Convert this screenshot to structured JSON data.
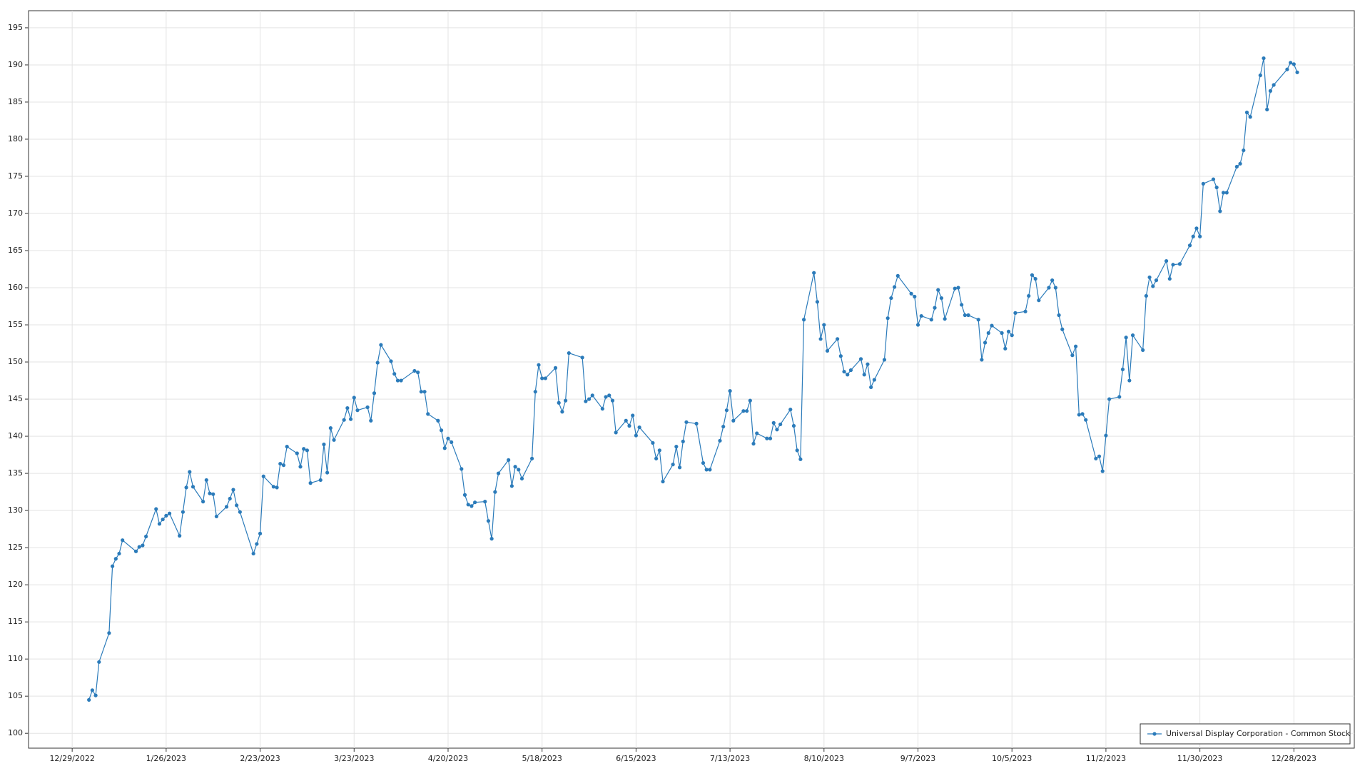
{
  "chart_data": {
    "type": "line",
    "x": [
      "1/3/2023",
      "1/4/2023",
      "1/5/2023",
      "1/6/2023",
      "1/9/2023",
      "1/10/2023",
      "1/11/2023",
      "1/12/2023",
      "1/13/2023",
      "1/17/2023",
      "1/18/2023",
      "1/19/2023",
      "1/20/2023",
      "1/23/2023",
      "1/24/2023",
      "1/25/2023",
      "1/26/2023",
      "1/27/2023",
      "1/30/2023",
      "1/31/2023",
      "2/1/2023",
      "2/2/2023",
      "2/3/2023",
      "2/6/2023",
      "2/7/2023",
      "2/8/2023",
      "2/9/2023",
      "2/10/2023",
      "2/13/2023",
      "2/14/2023",
      "2/15/2023",
      "2/16/2023",
      "2/17/2023",
      "2/21/2023",
      "2/22/2023",
      "2/23/2023",
      "2/24/2023",
      "2/27/2023",
      "2/28/2023",
      "3/1/2023",
      "3/2/2023",
      "3/3/2023",
      "3/6/2023",
      "3/7/2023",
      "3/8/2023",
      "3/9/2023",
      "3/10/2023",
      "3/13/2023",
      "3/14/2023",
      "3/15/2023",
      "3/16/2023",
      "3/17/2023",
      "3/20/2023",
      "3/21/2023",
      "3/22/2023",
      "3/23/2023",
      "3/24/2023",
      "3/27/2023",
      "3/28/2023",
      "3/29/2023",
      "3/30/2023",
      "3/31/2023",
      "4/3/2023",
      "4/4/2023",
      "4/5/2023",
      "4/6/2023",
      "4/10/2023",
      "4/11/2023",
      "4/12/2023",
      "4/13/2023",
      "4/14/2023",
      "4/17/2023",
      "4/18/2023",
      "4/19/2023",
      "4/20/2023",
      "4/21/2023",
      "4/24/2023",
      "4/25/2023",
      "4/26/2023",
      "4/27/2023",
      "4/28/2023",
      "5/1/2023",
      "5/2/2023",
      "5/3/2023",
      "5/4/2023",
      "5/5/2023",
      "5/8/2023",
      "5/9/2023",
      "5/10/2023",
      "5/11/2023",
      "5/12/2023",
      "5/15/2023",
      "5/16/2023",
      "5/17/2023",
      "5/18/2023",
      "5/19/2023",
      "5/22/2023",
      "5/23/2023",
      "5/24/2023",
      "5/25/2023",
      "5/26/2023",
      "5/30/2023",
      "5/31/2023",
      "6/1/2023",
      "6/2/2023",
      "6/5/2023",
      "6/6/2023",
      "6/7/2023",
      "6/8/2023",
      "6/9/2023",
      "6/12/2023",
      "6/13/2023",
      "6/14/2023",
      "6/15/2023",
      "6/16/2023",
      "6/20/2023",
      "6/21/2023",
      "6/22/2023",
      "6/23/2023",
      "6/26/2023",
      "6/27/2023",
      "6/28/2023",
      "6/29/2023",
      "6/30/2023",
      "7/3/2023",
      "7/5/2023",
      "7/6/2023",
      "7/7/2023",
      "7/10/2023",
      "7/11/2023",
      "7/12/2023",
      "7/13/2023",
      "7/14/2023",
      "7/17/2023",
      "7/18/2023",
      "7/19/2023",
      "7/20/2023",
      "7/21/2023",
      "7/24/2023",
      "7/25/2023",
      "7/26/2023",
      "7/27/2023",
      "7/28/2023",
      "7/31/2023",
      "8/1/2023",
      "8/2/2023",
      "8/3/2023",
      "8/4/2023",
      "8/7/2023",
      "8/8/2023",
      "8/9/2023",
      "8/10/2023",
      "8/11/2023",
      "8/14/2023",
      "8/15/2023",
      "8/16/2023",
      "8/17/2023",
      "8/18/2023",
      "8/21/2023",
      "8/22/2023",
      "8/23/2023",
      "8/24/2023",
      "8/25/2023",
      "8/28/2023",
      "8/29/2023",
      "8/30/2023",
      "8/31/2023",
      "9/1/2023",
      "9/5/2023",
      "9/6/2023",
      "9/7/2023",
      "9/8/2023",
      "9/11/2023",
      "9/12/2023",
      "9/13/2023",
      "9/14/2023",
      "9/15/2023",
      "9/18/2023",
      "9/19/2023",
      "9/20/2023",
      "9/21/2023",
      "9/22/2023",
      "9/25/2023",
      "9/26/2023",
      "9/27/2023",
      "9/28/2023",
      "9/29/2023",
      "10/2/2023",
      "10/3/2023",
      "10/4/2023",
      "10/5/2023",
      "10/6/2023",
      "10/9/2023",
      "10/10/2023",
      "10/11/2023",
      "10/12/2023",
      "10/13/2023",
      "10/16/2023",
      "10/17/2023",
      "10/18/2023",
      "10/19/2023",
      "10/20/2023",
      "10/23/2023",
      "10/24/2023",
      "10/25/2023",
      "10/26/2023",
      "10/27/2023",
      "10/30/2023",
      "10/31/2023",
      "11/1/2023",
      "11/2/2023",
      "11/3/2023",
      "11/6/2023",
      "11/7/2023",
      "11/8/2023",
      "11/9/2023",
      "11/10/2023",
      "11/13/2023",
      "11/14/2023",
      "11/15/2023",
      "11/16/2023",
      "11/17/2023",
      "11/20/2023",
      "11/21/2023",
      "11/22/2023",
      "11/24/2023",
      "11/27/2023",
      "11/28/2023",
      "11/29/2023",
      "11/30/2023",
      "12/1/2023",
      "12/4/2023",
      "12/5/2023",
      "12/6/2023",
      "12/7/2023",
      "12/8/2023",
      "12/11/2023",
      "12/12/2023",
      "12/13/2023",
      "12/14/2023",
      "12/15/2023",
      "12/18/2023",
      "12/19/2023",
      "12/20/2023",
      "12/21/2023",
      "12/22/2023",
      "12/26/2023",
      "12/27/2023",
      "12/28/2023",
      "12/29/2023"
    ],
    "series": [
      {
        "name": "Universal Display Corporation - Common Stock",
        "color": "#2b7bba",
        "values": [
          104.5,
          105.8,
          105.1,
          109.6,
          113.5,
          122.5,
          123.5,
          124.2,
          126,
          124.5,
          125.1,
          125.3,
          126.5,
          130.2,
          128.2,
          128.8,
          129.3,
          129.6,
          126.6,
          129.8,
          133.1,
          135.2,
          133.2,
          131.2,
          134.1,
          132.3,
          132.2,
          129.2,
          130.5,
          131.6,
          132.8,
          130.7,
          129.8,
          124.2,
          125.5,
          126.9,
          134.6,
          133.2,
          133.1,
          136.3,
          136.1,
          138.6,
          137.7,
          135.9,
          138.3,
          138.1,
          133.7,
          134.1,
          138.9,
          135.1,
          141.1,
          139.5,
          142.2,
          143.8,
          142.3,
          145.2,
          143.5,
          143.9,
          142.1,
          145.8,
          149.9,
          152.3,
          150.1,
          148.4,
          147.5,
          147.5,
          148.8,
          148.6,
          146,
          146,
          143,
          142.1,
          140.8,
          138.4,
          139.7,
          139.2,
          135.6,
          132.1,
          130.8,
          130.6,
          131.1,
          131.2,
          128.6,
          126.2,
          132.5,
          135,
          136.8,
          133.3,
          135.9,
          135.5,
          134.3,
          137,
          146,
          149.6,
          147.8,
          147.8,
          149.2,
          144.5,
          143.3,
          144.8,
          151.2,
          150.6,
          144.7,
          145,
          145.5,
          143.7,
          145.3,
          145.5,
          144.8,
          140.5,
          142.1,
          141.4,
          142.8,
          140.1,
          141.2,
          139.1,
          137,
          138.1,
          133.9,
          136.2,
          138.6,
          135.8,
          139.3,
          141.9,
          141.7,
          136.4,
          135.5,
          135.5,
          139.4,
          141.3,
          143.5,
          146.1,
          142.1,
          143.4,
          143.4,
          144.8,
          139,
          140.4,
          139.7,
          139.7,
          141.8,
          140.9,
          141.6,
          143.6,
          141.4,
          138.1,
          136.9,
          155.7,
          162,
          158.1,
          153.1,
          155,
          151.5,
          153.1,
          150.8,
          148.7,
          148.3,
          148.9,
          150.4,
          148.3,
          149.7,
          146.6,
          147.6,
          150.3,
          155.9,
          158.6,
          160.1,
          161.6,
          159.2,
          158.8,
          155,
          156.2,
          155.7,
          157.3,
          159.7,
          158.6,
          155.8,
          159.9,
          160,
          157.7,
          156.3,
          156.3,
          155.7,
          150.3,
          152.6,
          153.9,
          154.9,
          153.9,
          151.8,
          154.1,
          153.6,
          156.6,
          156.8,
          158.9,
          161.7,
          161.2,
          158.3,
          160,
          161,
          160,
          156.3,
          154.4,
          150.9,
          152.1,
          142.9,
          143,
          142.2,
          137,
          137.3,
          135.3,
          140.1,
          145,
          145.3,
          149,
          153.3,
          147.5,
          153.6,
          151.6,
          158.9,
          161.4,
          160.2,
          161,
          163.6,
          161.2,
          163.1,
          163.2,
          165.7,
          166.9,
          168,
          166.9,
          174,
          174.6,
          173.5,
          170.3,
          172.8,
          172.8,
          176.3,
          176.7,
          178.5,
          183.6,
          183,
          188.6,
          190.9,
          184,
          186.5,
          187.3,
          189.4,
          190.3,
          190.1,
          189
        ]
      }
    ],
    "xlim": [
      "12/16/2022",
      "1/15/2024"
    ],
    "xticks": [
      "12/29/2022",
      "1/26/2023",
      "2/23/2023",
      "3/23/2023",
      "4/20/2023",
      "5/18/2023",
      "6/15/2023",
      "7/13/2023",
      "8/10/2023",
      "9/7/2023",
      "10/5/2023",
      "11/2/2023",
      "11/30/2023",
      "12/28/2023"
    ],
    "ylim": [
      98,
      197.3
    ],
    "yticks": [
      100,
      105,
      110,
      115,
      120,
      125,
      130,
      135,
      140,
      145,
      150,
      155,
      160,
      165,
      170,
      175,
      180,
      185,
      190,
      195
    ],
    "grid": true,
    "legend": "bottom-right"
  }
}
